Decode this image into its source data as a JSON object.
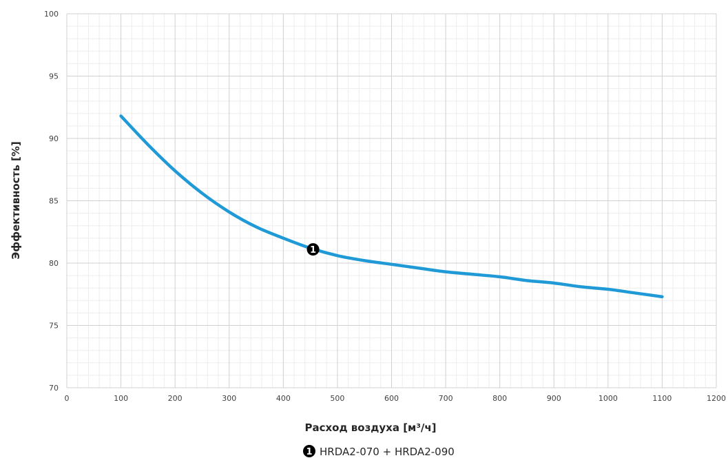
{
  "chart_data": {
    "type": "line",
    "title": "",
    "xlabel": "Расход воздуха [м³/ч]",
    "ylabel": "Эффективность  [%]",
    "xlim": [
      0,
      1200
    ],
    "ylim": [
      70,
      100
    ],
    "x_ticks": [
      "0",
      "100",
      "200",
      "300",
      "400",
      "500",
      "600",
      "700",
      "800",
      "900",
      "1000",
      "1100",
      "1200"
    ],
    "y_ticks": [
      "70",
      "75",
      "80",
      "85",
      "90",
      "95",
      "100"
    ],
    "grid": true,
    "legend_position": "bottom",
    "series": [
      {
        "name": "HRDA2-070 + HRDA2-090",
        "marker_label": "1",
        "marker_point": [
          455,
          81.1
        ],
        "color": "#1f9ad6",
        "x": [
          100,
          150,
          200,
          250,
          300,
          350,
          400,
          450,
          500,
          550,
          600,
          650,
          700,
          750,
          800,
          850,
          900,
          950,
          1000,
          1050,
          1100
        ],
        "y": [
          91.8,
          89.5,
          87.4,
          85.6,
          84.1,
          82.9,
          82.0,
          81.2,
          80.6,
          80.2,
          79.9,
          79.6,
          79.3,
          79.1,
          78.9,
          78.6,
          78.4,
          78.1,
          77.9,
          77.6,
          77.3
        ]
      }
    ]
  }
}
